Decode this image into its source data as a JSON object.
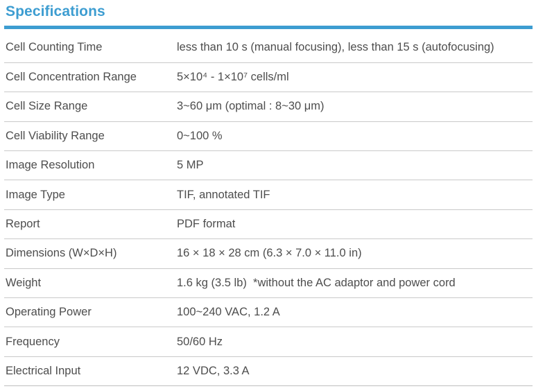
{
  "title": "Specifications",
  "accent_color": "#3d9dd1",
  "rows": [
    {
      "label": "Cell Counting Time",
      "value": "less than 10 s (manual focusing), less than 15 s (autofocusing)"
    },
    {
      "label": "Cell Concentration Range",
      "value": "5×10⁴ - 1×10⁷ cells/ml"
    },
    {
      "label": "Cell Size Range",
      "value": "3~60 μm (optimal : 8~30 μm)"
    },
    {
      "label": "Cell Viability Range",
      "value": "0~100 %"
    },
    {
      "label": "Image Resolution",
      "value": "5 MP"
    },
    {
      "label": "Image Type",
      "value": "TIF, annotated TIF"
    },
    {
      "label": "Report",
      "value": " PDF format"
    },
    {
      "label": "Dimensions (W×D×H)",
      "value": "16 × 18 × 28 cm (6.3 × 7.0 × 11.0 in)"
    },
    {
      "label": "Weight",
      "value": "1.6 kg (3.5 lb)  *without the AC adaptor and power cord"
    },
    {
      "label": "Operating Power",
      "value": "100~240 VAC, 1.2 A"
    },
    {
      "label": "Frequency",
      "value": "50/60 Hz"
    },
    {
      "label": "Electrical Input",
      "value": "12 VDC, 3.3 A"
    }
  ]
}
